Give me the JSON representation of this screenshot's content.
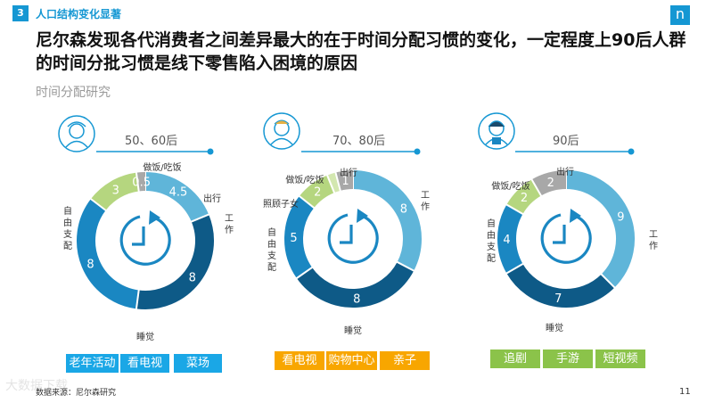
{
  "header": {
    "number": "3",
    "title": "人口结构变化显著",
    "logo": "n"
  },
  "headline": "尼尔森发现各代消费者之间差异最大的在于时间分配习惯的变化，一定程度上90后人群的时间分批习惯是线下零售陷入困境的原因",
  "subtitle": "时间分配研究",
  "colors": {
    "accent": "#1597d3",
    "dark_blue": "#0e5a87",
    "blue": "#1a87c2",
    "light_blue": "#5fb5d9",
    "green": "#b5d67f",
    "gray": "#a8a8a8",
    "tag_blue": "#1aa7e6",
    "tag_orange": "#f8a600",
    "tag_green": "#8bc34a"
  },
  "groups": [
    {
      "label": "50、60后",
      "icon": "elderly-person-icon",
      "segments": [
        {
          "name": "工作",
          "value": 4.5,
          "color": "#5fb5d9",
          "show": "4.5"
        },
        {
          "name": "睡觉",
          "value": 8,
          "color": "#0e5a87",
          "show": "8"
        },
        {
          "name": "自由支配",
          "value": 8,
          "color": "#1a87c2",
          "show": "8"
        },
        {
          "name": "做饭/吃饭",
          "value": 3,
          "color": "#b5d67f",
          "show": "3"
        },
        {
          "name": "出行",
          "value": 0.5,
          "color": "#a8a8a8",
          "show": "0.5"
        }
      ],
      "tags": [
        "老年活动",
        "看电视",
        "菜场"
      ]
    },
    {
      "label": "70、80后",
      "icon": "middle-aged-person-icon",
      "segments": [
        {
          "name": "工作",
          "value": 8,
          "color": "#5fb5d9",
          "show": "8"
        },
        {
          "name": "睡觉",
          "value": 8,
          "color": "#0e5a87",
          "show": "8"
        },
        {
          "name": "自由支配",
          "value": 5,
          "color": "#1a87c2",
          "show": "5"
        },
        {
          "name": "照顾子女",
          "value": 2,
          "color": "#b5d67f",
          "show": "2"
        },
        {
          "name": "做饭/吃饭",
          "value": 0.5,
          "color": "#d3e7b0",
          "show": ""
        },
        {
          "name": "出行",
          "value": 1,
          "color": "#a8a8a8",
          "show": "1"
        }
      ],
      "tags": [
        "看电视",
        "购物中心",
        "亲子"
      ]
    },
    {
      "label": "90后",
      "icon": "young-person-icon",
      "segments": [
        {
          "name": "工作",
          "value": 9,
          "color": "#5fb5d9",
          "show": "9"
        },
        {
          "name": "睡觉",
          "value": 7,
          "color": "#0e5a87",
          "show": "7"
        },
        {
          "name": "自由支配",
          "value": 4,
          "color": "#1a87c2",
          "show": "4"
        },
        {
          "name": "做饭/吃饭",
          "value": 2,
          "color": "#b5d67f",
          "show": "2"
        },
        {
          "name": "出行",
          "value": 2,
          "color": "#a8a8a8",
          "show": "2"
        }
      ],
      "tags": [
        "追剧",
        "手游",
        "短视频"
      ]
    }
  ],
  "footer": "数据来源：尼尔森研究",
  "watermark": "大数据下载",
  "page_number": "11"
}
